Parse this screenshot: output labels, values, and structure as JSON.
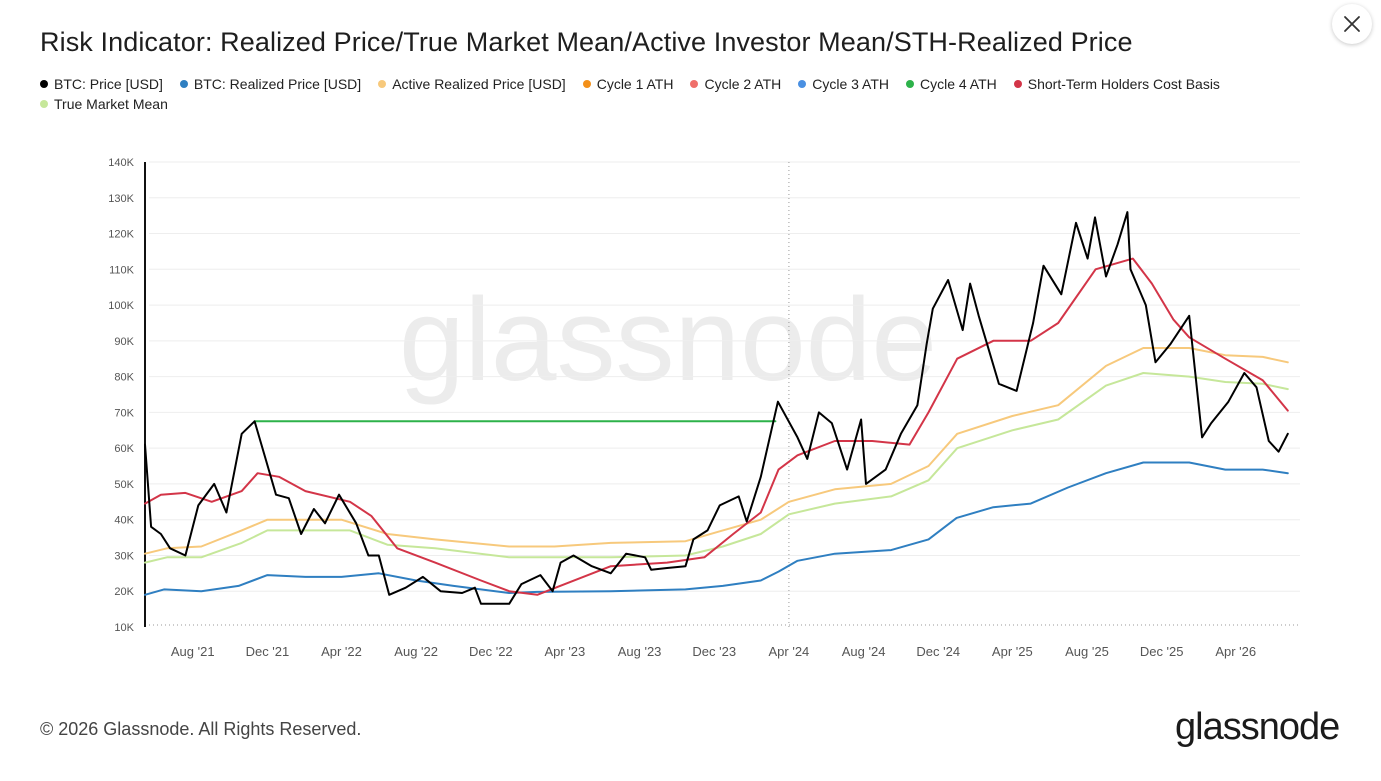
{
  "title": "Risk Indicator: Realized Price/True Market Mean/Active Investor Mean/STH-Realized Price",
  "close_icon": "close-icon",
  "legend": [
    {
      "label": "BTC: Price [USD]",
      "color": "#000000"
    },
    {
      "label": "BTC: Realized Price [USD]",
      "color": "#2f7fc1"
    },
    {
      "label": "Active Realized Price [USD]",
      "color": "#f7c97c"
    },
    {
      "label": "Cycle 1 ATH",
      "color": "#f39019"
    },
    {
      "label": "Cycle 2 ATH",
      "color": "#ef6f6a"
    },
    {
      "label": "Cycle 3 ATH",
      "color": "#4a90e2"
    },
    {
      "label": "Cycle 4 ATH",
      "color": "#2db24a"
    },
    {
      "label": "Short-Term Holders Cost Basis",
      "color": "#d33548"
    },
    {
      "label": "True Market Mean",
      "color": "#c6e79a"
    }
  ],
  "watermark": "glassnode",
  "footer": {
    "copyright": "© 2026 Glassnode. All Rights Reserved.",
    "logo": "glassnode"
  },
  "chart_data": {
    "type": "line",
    "title": "",
    "xlabel": "",
    "ylabel": "",
    "x_ticks": [
      "Aug '21",
      "Dec '21",
      "Apr '22",
      "Aug '22",
      "Dec '22",
      "Apr '23",
      "Aug '23",
      "Dec '23",
      "Apr '24",
      "Aug '24",
      "Dec '24",
      "Apr '25",
      "Aug '25",
      "Dec '25",
      "Apr '26"
    ],
    "y_ticks": [
      "10K",
      "20K",
      "30K",
      "40K",
      "50K",
      "60K",
      "70K",
      "80K",
      "90K",
      "100K",
      "110K",
      "120K",
      "130K",
      "140K"
    ],
    "xlim": [
      "2021-05-15",
      "2026-07-15"
    ],
    "ylim": [
      10000,
      140000
    ],
    "grid": true,
    "legend_position": "top",
    "annotations": [
      {
        "type": "vertical-dotted-line",
        "x": "2024-04-01"
      },
      {
        "type": "horizontal-line",
        "series": "Cycle 4 ATH",
        "y": 67500,
        "x_start": "2021-11-10",
        "x_end": "2024-03-10"
      }
    ],
    "series": [
      {
        "name": "BTC: Price [USD]",
        "color": "#000000",
        "points": [
          [
            "2021-05-15",
            61000
          ],
          [
            "2021-05-25",
            38000
          ],
          [
            "2021-06-10",
            36000
          ],
          [
            "2021-06-25",
            32000
          ],
          [
            "2021-07-20",
            30000
          ],
          [
            "2021-08-10",
            44000
          ],
          [
            "2021-09-05",
            50000
          ],
          [
            "2021-09-25",
            42000
          ],
          [
            "2021-10-20",
            64000
          ],
          [
            "2021-11-10",
            67500
          ],
          [
            "2021-11-28",
            57000
          ],
          [
            "2021-12-15",
            47000
          ],
          [
            "2022-01-05",
            46000
          ],
          [
            "2022-01-25",
            36000
          ],
          [
            "2022-02-15",
            43000
          ],
          [
            "2022-03-05",
            39000
          ],
          [
            "2022-03-28",
            47000
          ],
          [
            "2022-04-25",
            39000
          ],
          [
            "2022-05-15",
            30000
          ],
          [
            "2022-06-01",
            30000
          ],
          [
            "2022-06-18",
            19000
          ],
          [
            "2022-07-15",
            21000
          ],
          [
            "2022-08-12",
            24000
          ],
          [
            "2022-09-10",
            20000
          ],
          [
            "2022-10-15",
            19500
          ],
          [
            "2022-11-05",
            21000
          ],
          [
            "2022-11-15",
            16500
          ],
          [
            "2022-12-31",
            16500
          ],
          [
            "2023-01-20",
            22000
          ],
          [
            "2023-02-20",
            24500
          ],
          [
            "2023-03-12",
            20000
          ],
          [
            "2023-03-25",
            28000
          ],
          [
            "2023-04-15",
            30000
          ],
          [
            "2023-05-15",
            27000
          ],
          [
            "2023-06-15",
            25000
          ],
          [
            "2023-07-10",
            30500
          ],
          [
            "2023-08-10",
            29500
          ],
          [
            "2023-08-20",
            26000
          ],
          [
            "2023-09-15",
            26500
          ],
          [
            "2023-10-15",
            27000
          ],
          [
            "2023-10-28",
            34500
          ],
          [
            "2023-11-20",
            37000
          ],
          [
            "2023-12-10",
            44000
          ],
          [
            "2024-01-10",
            46500
          ],
          [
            "2024-01-23",
            39500
          ],
          [
            "2024-02-15",
            52000
          ],
          [
            "2024-03-14",
            73000
          ],
          [
            "2024-04-15",
            63000
          ],
          [
            "2024-05-01",
            57000
          ],
          [
            "2024-05-20",
            70000
          ],
          [
            "2024-06-10",
            67000
          ],
          [
            "2024-07-05",
            54000
          ],
          [
            "2024-07-28",
            68000
          ],
          [
            "2024-08-05",
            50000
          ],
          [
            "2024-09-06",
            54000
          ],
          [
            "2024-10-01",
            64000
          ],
          [
            "2024-10-28",
            72000
          ],
          [
            "2024-11-12",
            89000
          ],
          [
            "2024-11-22",
            99000
          ],
          [
            "2024-12-17",
            107000
          ],
          [
            "2025-01-10",
            93000
          ],
          [
            "2025-01-22",
            106000
          ],
          [
            "2025-02-05",
            97000
          ],
          [
            "2025-03-10",
            78000
          ],
          [
            "2025-04-08",
            76000
          ],
          [
            "2025-05-05",
            95000
          ],
          [
            "2025-05-22",
            111000
          ],
          [
            "2025-06-20",
            103000
          ],
          [
            "2025-07-14",
            123000
          ],
          [
            "2025-08-02",
            113000
          ],
          [
            "2025-08-14",
            124500
          ],
          [
            "2025-09-01",
            108000
          ],
          [
            "2025-09-20",
            117000
          ],
          [
            "2025-10-06",
            126000
          ],
          [
            "2025-10-11",
            110000
          ],
          [
            "2025-11-05",
            100000
          ],
          [
            "2025-11-21",
            84000
          ],
          [
            "2025-12-15",
            89000
          ],
          [
            "2026-01-15",
            97000
          ],
          [
            "2026-02-05",
            63000
          ],
          [
            "2026-02-20",
            67000
          ],
          [
            "2026-03-20",
            73000
          ],
          [
            "2026-04-15",
            81000
          ],
          [
            "2026-05-05",
            77000
          ],
          [
            "2026-05-25",
            62000
          ],
          [
            "2026-06-10",
            59000
          ],
          [
            "2026-06-25",
            64000
          ]
        ]
      },
      {
        "name": "BTC: Realized Price [USD]",
        "color": "#2f7fc1",
        "points": [
          [
            "2021-05-15",
            19000
          ],
          [
            "2021-06-15",
            20500
          ],
          [
            "2021-08-15",
            20000
          ],
          [
            "2021-10-15",
            21500
          ],
          [
            "2021-12-01",
            24500
          ],
          [
            "2022-02-01",
            24000
          ],
          [
            "2022-04-01",
            24000
          ],
          [
            "2022-06-01",
            25000
          ],
          [
            "2022-08-01",
            23000
          ],
          [
            "2022-10-01",
            21500
          ],
          [
            "2022-12-31",
            19500
          ],
          [
            "2023-02-15",
            19800
          ],
          [
            "2023-06-15",
            20000
          ],
          [
            "2023-10-15",
            20500
          ],
          [
            "2023-12-15",
            21500
          ],
          [
            "2024-02-15",
            23000
          ],
          [
            "2024-03-15",
            25500
          ],
          [
            "2024-04-15",
            28500
          ],
          [
            "2024-06-15",
            30500
          ],
          [
            "2024-09-15",
            31500
          ],
          [
            "2024-11-15",
            34500
          ],
          [
            "2024-12-31",
            40500
          ],
          [
            "2025-03-01",
            43500
          ],
          [
            "2025-05-01",
            44500
          ],
          [
            "2025-07-01",
            49000
          ],
          [
            "2025-09-01",
            53000
          ],
          [
            "2025-11-01",
            56000
          ],
          [
            "2026-01-15",
            56000
          ],
          [
            "2026-03-15",
            54000
          ],
          [
            "2026-05-15",
            54000
          ],
          [
            "2026-06-25",
            53000
          ]
        ]
      },
      {
        "name": "Active Realized Price [USD]",
        "color": "#f7c97c",
        "points": [
          [
            "2021-05-15",
            30500
          ],
          [
            "2021-06-20",
            32000
          ],
          [
            "2021-08-15",
            32500
          ],
          [
            "2021-10-20",
            37000
          ],
          [
            "2021-12-01",
            40000
          ],
          [
            "2022-04-01",
            40000
          ],
          [
            "2022-06-15",
            36000
          ],
          [
            "2022-09-01",
            34500
          ],
          [
            "2022-12-31",
            32500
          ],
          [
            "2023-03-15",
            32500
          ],
          [
            "2023-06-15",
            33500
          ],
          [
            "2023-10-15",
            34000
          ],
          [
            "2023-12-15",
            37000
          ],
          [
            "2024-02-15",
            40000
          ],
          [
            "2024-04-01",
            45000
          ],
          [
            "2024-06-15",
            48500
          ],
          [
            "2024-09-15",
            50000
          ],
          [
            "2024-11-15",
            55000
          ],
          [
            "2025-01-01",
            64000
          ],
          [
            "2025-04-01",
            69000
          ],
          [
            "2025-06-15",
            72000
          ],
          [
            "2025-09-01",
            83000
          ],
          [
            "2025-11-01",
            88000
          ],
          [
            "2026-01-15",
            88000
          ],
          [
            "2026-03-15",
            86000
          ],
          [
            "2026-05-15",
            85500
          ],
          [
            "2026-06-25",
            84000
          ]
        ]
      },
      {
        "name": "Cycle 4 ATH",
        "color": "#2db24a",
        "points": [
          [
            "2021-11-10",
            67500
          ],
          [
            "2024-03-10",
            67500
          ]
        ]
      },
      {
        "name": "Short-Term Holders Cost Basis",
        "color": "#d33548",
        "points": [
          [
            "2021-05-15",
            44500
          ],
          [
            "2021-06-10",
            47000
          ],
          [
            "2021-07-20",
            47500
          ],
          [
            "2021-09-01",
            45000
          ],
          [
            "2021-10-20",
            48000
          ],
          [
            "2021-11-15",
            53000
          ],
          [
            "2021-12-20",
            52000
          ],
          [
            "2022-02-01",
            48000
          ],
          [
            "2022-04-15",
            45000
          ],
          [
            "2022-05-20",
            41000
          ],
          [
            "2022-07-01",
            32000
          ],
          [
            "2022-09-01",
            28000
          ],
          [
            "2022-11-15",
            23000
          ],
          [
            "2022-12-31",
            20000
          ],
          [
            "2023-02-15",
            19000
          ],
          [
            "2023-04-01",
            22000
          ],
          [
            "2023-06-15",
            27000
          ],
          [
            "2023-09-15",
            28000
          ],
          [
            "2023-11-15",
            29500
          ],
          [
            "2024-01-01",
            36000
          ],
          [
            "2024-02-15",
            42000
          ],
          [
            "2024-03-15",
            54000
          ],
          [
            "2024-04-15",
            58000
          ],
          [
            "2024-06-15",
            62000
          ],
          [
            "2024-08-15",
            62000
          ],
          [
            "2024-10-15",
            61000
          ],
          [
            "2024-11-15",
            70000
          ],
          [
            "2025-01-01",
            85000
          ],
          [
            "2025-03-01",
            90000
          ],
          [
            "2025-05-01",
            90000
          ],
          [
            "2025-06-15",
            95000
          ],
          [
            "2025-08-15",
            110000
          ],
          [
            "2025-10-15",
            113000
          ],
          [
            "2025-11-15",
            106000
          ],
          [
            "2025-12-20",
            96000
          ],
          [
            "2026-01-15",
            91000
          ],
          [
            "2026-03-15",
            85000
          ],
          [
            "2026-05-15",
            79000
          ],
          [
            "2026-06-25",
            70500
          ]
        ]
      },
      {
        "name": "True Market Mean",
        "color": "#c6e79a",
        "points": [
          [
            "2021-05-15",
            28000
          ],
          [
            "2021-06-20",
            29500
          ],
          [
            "2021-08-15",
            29500
          ],
          [
            "2021-10-20",
            33500
          ],
          [
            "2021-12-01",
            37000
          ],
          [
            "2022-04-15",
            37000
          ],
          [
            "2022-06-15",
            33000
          ],
          [
            "2022-09-01",
            32000
          ],
          [
            "2022-12-31",
            29500
          ],
          [
            "2023-03-15",
            29500
          ],
          [
            "2023-06-15",
            29500
          ],
          [
            "2023-10-15",
            30000
          ],
          [
            "2023-12-15",
            32500
          ],
          [
            "2024-02-15",
            36000
          ],
          [
            "2024-04-01",
            41500
          ],
          [
            "2024-06-15",
            44500
          ],
          [
            "2024-09-15",
            46500
          ],
          [
            "2024-11-15",
            51000
          ],
          [
            "2025-01-01",
            60000
          ],
          [
            "2025-04-01",
            65000
          ],
          [
            "2025-06-15",
            68000
          ],
          [
            "2025-09-01",
            77500
          ],
          [
            "2025-11-01",
            81000
          ],
          [
            "2026-01-15",
            80000
          ],
          [
            "2026-03-15",
            78500
          ],
          [
            "2026-05-15",
            78000
          ],
          [
            "2026-06-25",
            76500
          ]
        ]
      }
    ]
  }
}
